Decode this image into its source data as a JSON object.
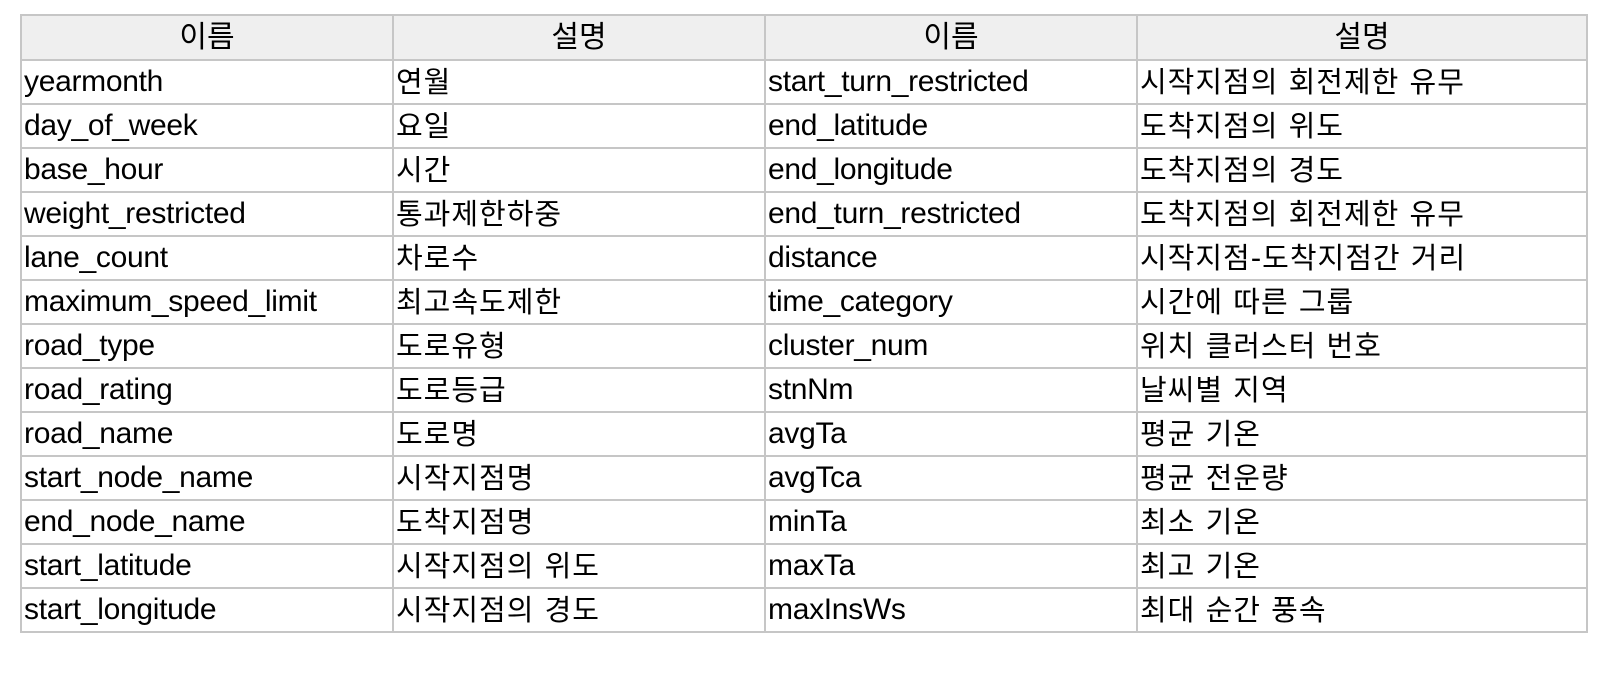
{
  "table": {
    "headers": [
      "이름",
      "설명",
      "이름",
      "설명"
    ],
    "rows": [
      [
        "yearmonth",
        "연월",
        "start_turn_restricted",
        "시작지점의 회전제한 유무"
      ],
      [
        "day_of_week",
        "요일",
        "end_latitude",
        "도착지점의 위도"
      ],
      [
        "base_hour",
        "시간",
        "end_longitude",
        "도착지점의 경도"
      ],
      [
        "weight_restricted",
        "통과제한하중",
        "end_turn_restricted",
        "도착지점의 회전제한 유무"
      ],
      [
        "lane_count",
        "차로수",
        "distance",
        "시작지점-도착지점간 거리"
      ],
      [
        "maximum_speed_limit",
        "최고속도제한",
        "time_category",
        "시간에 따른 그룹"
      ],
      [
        "road_type",
        "도로유형",
        "cluster_num",
        "위치 클러스터 번호"
      ],
      [
        "road_rating",
        "도로등급",
        "stnNm",
        "날씨별 지역"
      ],
      [
        "road_name",
        "도로명",
        "avgTa",
        "평균 기온"
      ],
      [
        "start_node_name",
        "시작지점명",
        "avgTca",
        "평균 전운량"
      ],
      [
        "end_node_name",
        "도착지점명",
        "minTa",
        "최소 기온"
      ],
      [
        "start_latitude",
        "시작지점의 위도",
        "maxTa",
        "최고 기온"
      ],
      [
        "start_longitude",
        "시작지점의 경도",
        "maxInsWs",
        "최대 순간 풍속"
      ]
    ]
  }
}
